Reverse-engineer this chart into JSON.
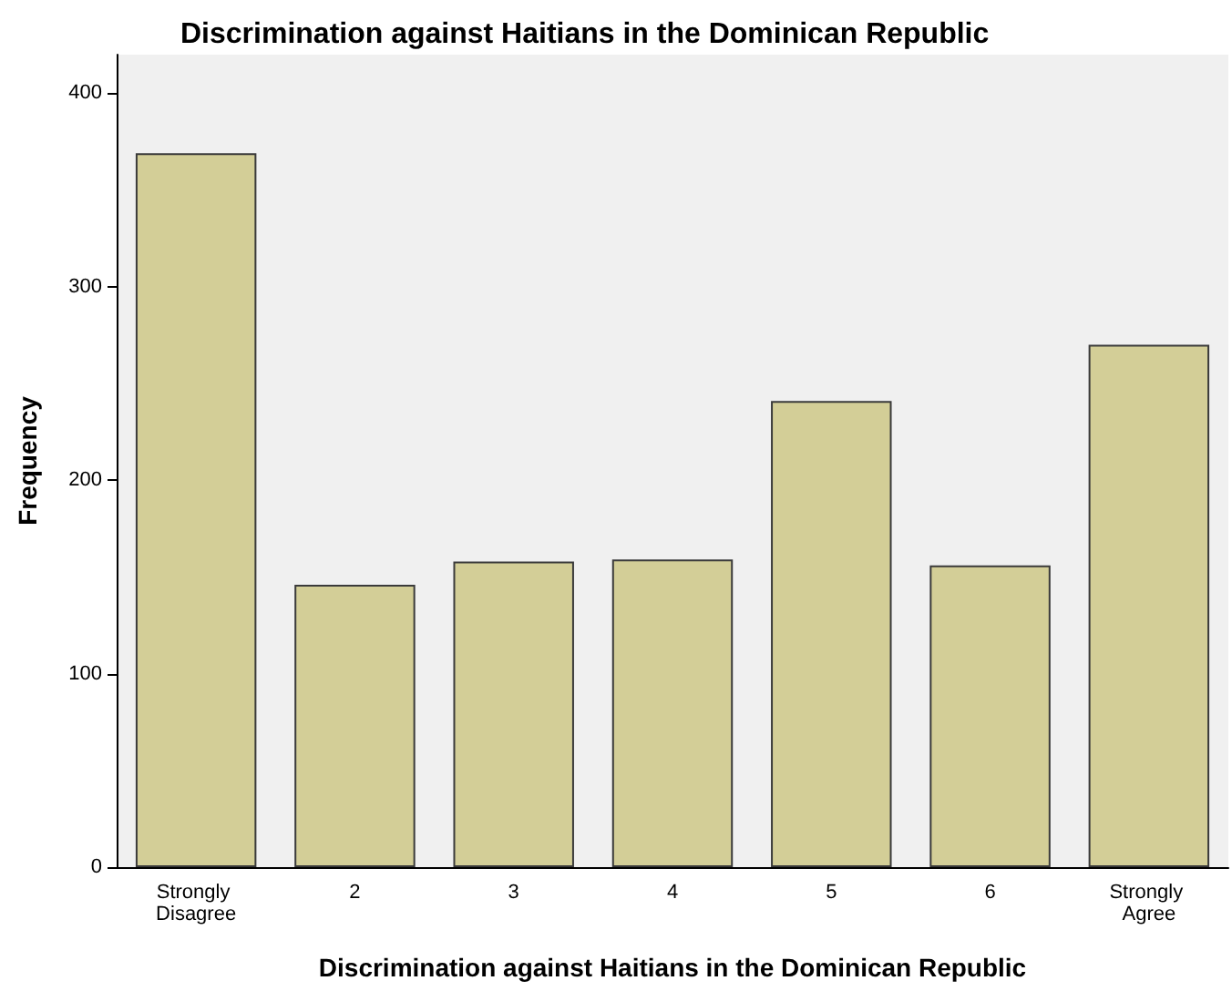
{
  "chart_data": {
    "type": "bar",
    "title": "Discrimination against Haitians in the Dominican Republic",
    "xlabel": "Discrimination against Haitians in the Dominican Republic",
    "ylabel": "Frequency",
    "categories": [
      "Strongly Disagree",
      "2",
      "3",
      "4",
      "5",
      "6",
      "Strongly Agree"
    ],
    "values": [
      369,
      146,
      158,
      159,
      241,
      156,
      270
    ],
    "color": "#d3ce97",
    "ylim": [
      0,
      420
    ],
    "yticks": [
      0,
      100,
      200,
      300,
      400
    ],
    "grid": false
  }
}
